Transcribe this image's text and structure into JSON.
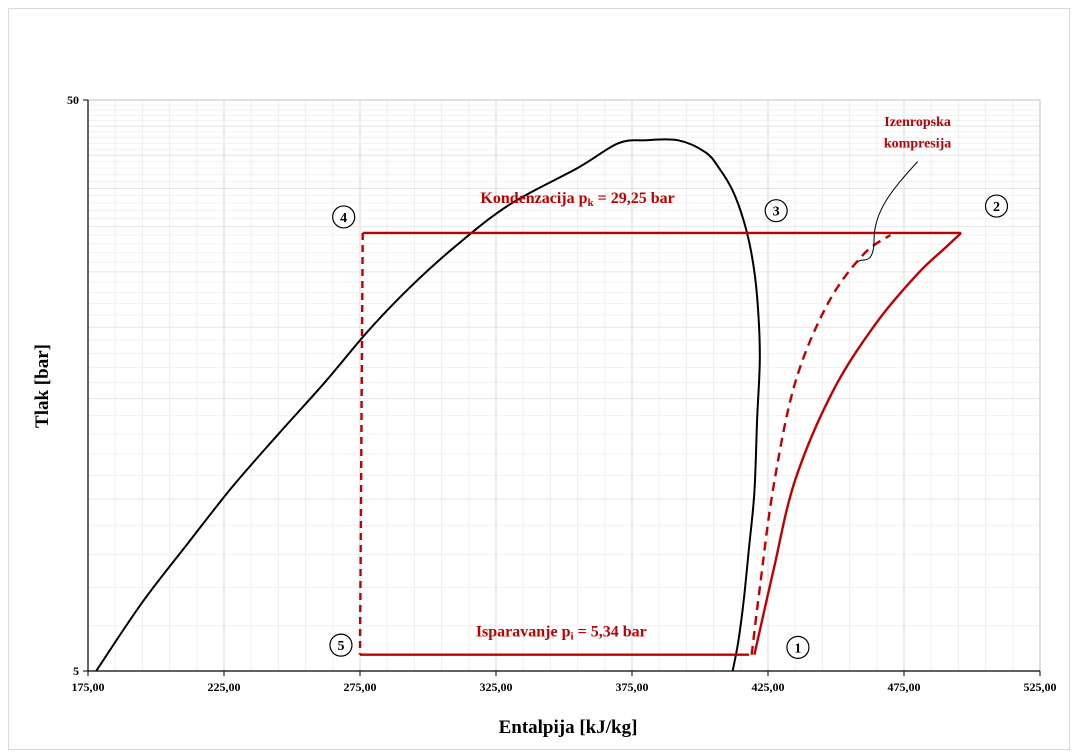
{
  "chart_data": {
    "type": "line",
    "title": "",
    "xlabel": "Entalpija [kJ/kg]",
    "ylabel": "Tlak [bar]",
    "xlim": [
      175,
      525
    ],
    "ylim": [
      5,
      50
    ],
    "y_scale": "log",
    "grid": true,
    "x_ticks": [
      175,
      225,
      275,
      325,
      375,
      425,
      475,
      525
    ],
    "x_tick_labels": [
      "175,00",
      "225,00",
      "275,00",
      "325,00",
      "375,00",
      "425,00",
      "475,00",
      "525,00"
    ],
    "y_ticks": [
      5,
      50
    ],
    "y_tick_labels": [
      "5",
      "50"
    ],
    "series": [
      {
        "style": "saturation-dome",
        "color": "#000000",
        "x": [
          178,
          195,
          212,
          228,
          245,
          262,
          278,
          293,
          310,
          330,
          355,
          370,
          380,
          392,
          402,
          407,
          412,
          416,
          419,
          421,
          422,
          421,
          420,
          418,
          416,
          414,
          412
        ],
        "y": [
          5,
          6.6,
          8.4,
          10.5,
          13.0,
          16.0,
          19.7,
          23.4,
          27.7,
          32.8,
          38.0,
          42.0,
          42.5,
          42.5,
          40.5,
          38.0,
          34.7,
          30.8,
          26.8,
          22.6,
          17.8,
          13.8,
          10.3,
          8.2,
          6.6,
          5.6,
          5
        ]
      },
      {
        "style": "cycle",
        "color": "#c00000",
        "x": [
          418,
          275,
          275,
          276,
          496,
          490,
          480,
          465,
          449,
          435,
          427,
          420
        ],
        "y": [
          5.34,
          5.34,
          5.34,
          29.25,
          29.25,
          27.5,
          24.8,
          20.4,
          15.5,
          10.8,
          7.5,
          5.34
        ]
      },
      {
        "style": "expansion-dashed",
        "color": "#c00000",
        "x": [
          276,
          275
        ],
        "y": [
          29.25,
          5.34
        ]
      },
      {
        "name": "Izenropska kompresija",
        "style": "isentropic-dashed",
        "color": "#c00000",
        "x": [
          419,
          422,
          427,
          435,
          447,
          460,
          470
        ],
        "y": [
          5.34,
          7.0,
          10.5,
          16.0,
          22.0,
          26.8,
          29.0
        ]
      }
    ],
    "annotations": [
      {
        "text": "Kondenzacija p",
        "sub": "k",
        "rest": " = 29,25 bar",
        "x": 355,
        "y": 33.0
      },
      {
        "text": "Isparavanje p",
        "sub": "i",
        "rest": " = 5,34 bar",
        "x": 349,
        "y": 5.75
      },
      {
        "text": "Izenropska",
        "x": 480,
        "y": 45.0
      },
      {
        "text": "kompresija",
        "x": 480,
        "y": 41.3
      }
    ],
    "points": [
      {
        "label": "1",
        "x": 436,
        "y": 5.5
      },
      {
        "label": "2",
        "x": 509,
        "y": 32.6
      },
      {
        "label": "3",
        "x": 428,
        "y": 32.0
      },
      {
        "label": "4",
        "x": 269,
        "y": 31.2
      },
      {
        "label": "5",
        "x": 268,
        "y": 5.55
      }
    ],
    "colors": {
      "cycle": "#c00000",
      "dome": "#000000",
      "grid": "#d9d9d9"
    }
  }
}
